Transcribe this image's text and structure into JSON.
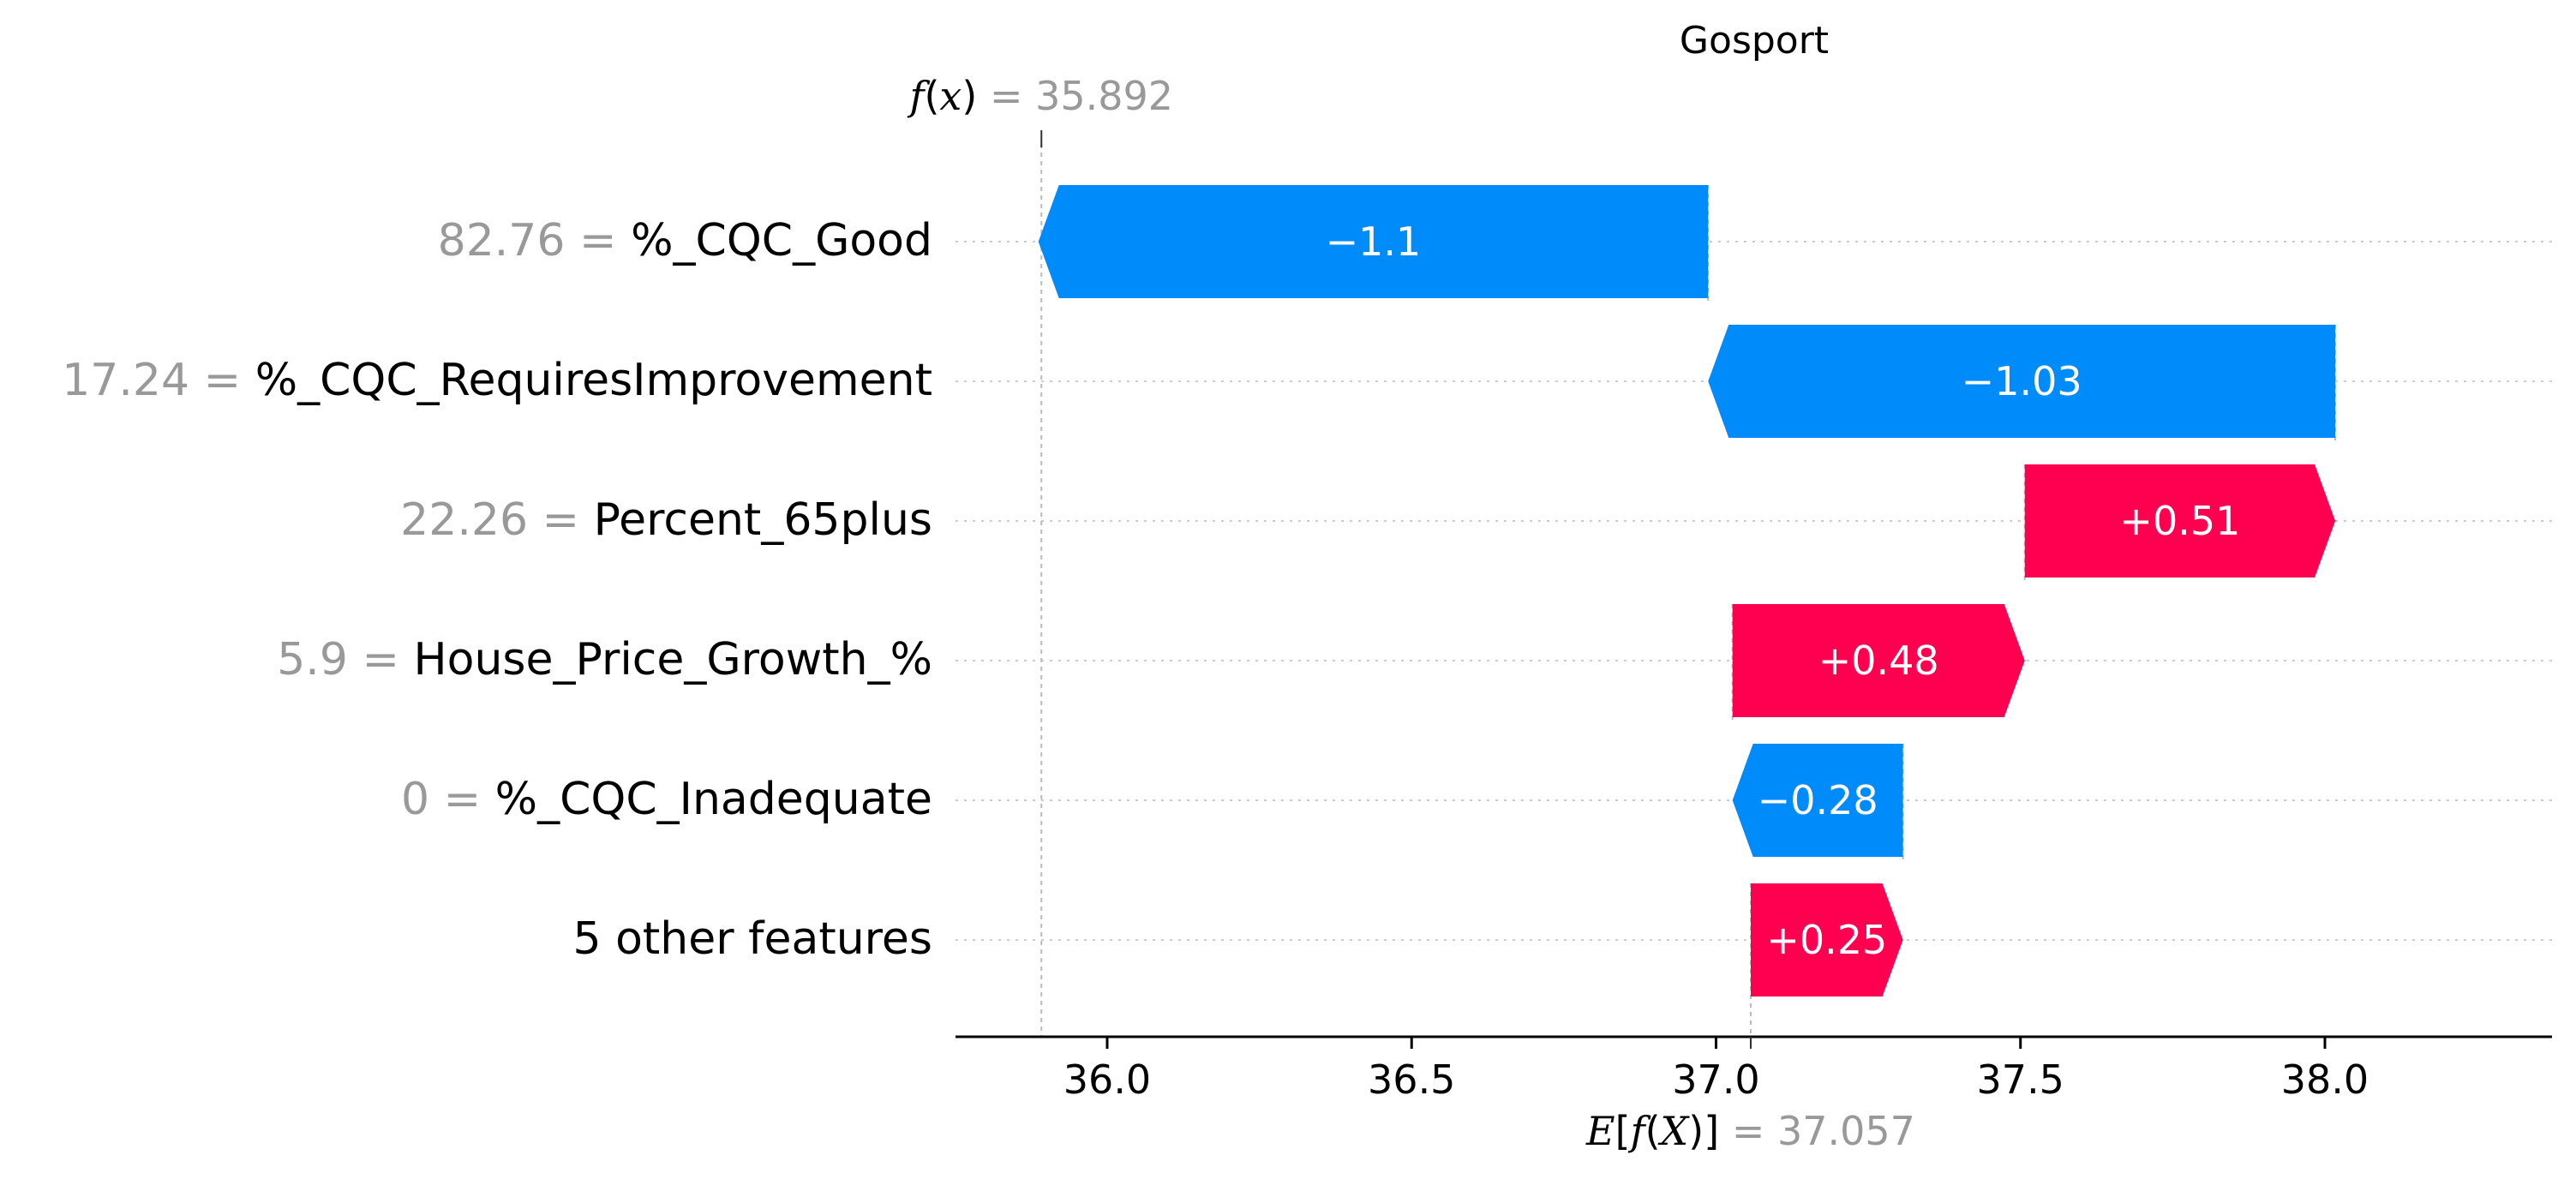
{
  "chart_data": {
    "type": "waterfall",
    "title": "Gosport",
    "fx": {
      "prefix": "f",
      "var": "x",
      "value": "35.892",
      "value_num": 35.892
    },
    "efx": {
      "prefix": "E",
      "inner": "f",
      "var": "X",
      "value": "37.057",
      "value_num": 37.057
    },
    "features": [
      {
        "value": "82.76",
        "name": "%_CQC_Good",
        "contribution": -1.1,
        "label": "−1.1"
      },
      {
        "value": "17.24",
        "name": "%_CQC_RequiresImprovement",
        "contribution": -1.03,
        "label": "−1.03"
      },
      {
        "value": "22.26",
        "name": "Percent_65plus",
        "contribution": 0.51,
        "label": "+0.51"
      },
      {
        "value": "5.9",
        "name": "House_Price_Growth_%",
        "contribution": 0.48,
        "label": "+0.48"
      },
      {
        "value": "0",
        "name": "%_CQC_Inadequate",
        "contribution": -0.28,
        "label": "−0.28"
      },
      {
        "value": "",
        "name": "5 other features",
        "contribution": 0.25,
        "label": "+0.25"
      }
    ],
    "xticks": [
      36.0,
      36.5,
      37.0,
      37.5,
      38.0
    ],
    "xtick_labels": [
      "36.0",
      "36.5",
      "37.0",
      "37.5",
      "38.0"
    ],
    "xlim": [
      35.78,
      38.41
    ],
    "colors": {
      "positive": "#ff0051",
      "negative": "#008bfb",
      "value_text": "#999999",
      "grid": "#cccccc",
      "connector": "#bbbbbb"
    }
  }
}
